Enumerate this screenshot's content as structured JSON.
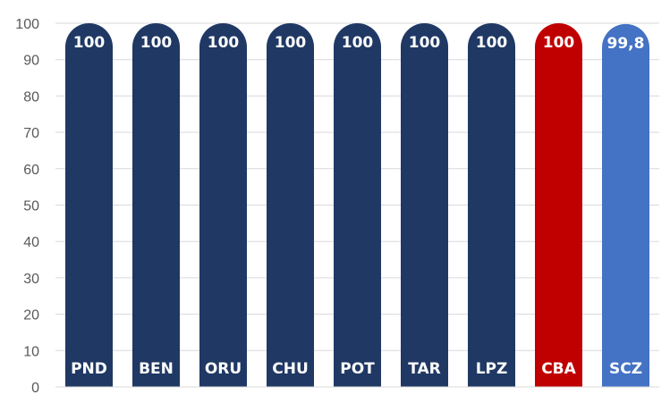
{
  "chart_data": {
    "type": "bar",
    "categories": [
      "PND",
      "BEN",
      "ORU",
      "CHU",
      "POT",
      "TAR",
      "LPZ",
      "CBA",
      "SCZ"
    ],
    "values": [
      100,
      100,
      100,
      100,
      100,
      100,
      100,
      100,
      99.8
    ],
    "value_labels": [
      "100",
      "100",
      "100",
      "100",
      "100",
      "100",
      "100",
      "100",
      "99,8"
    ],
    "bar_colors": [
      "#203864",
      "#203864",
      "#203864",
      "#203864",
      "#203864",
      "#203864",
      "#203864",
      "#c00000",
      "#4472c4"
    ],
    "yticks": [
      "0",
      "10",
      "20",
      "30",
      "40",
      "50",
      "60",
      "70",
      "80",
      "90",
      "100"
    ],
    "ylim": [
      0,
      100
    ],
    "grid": true,
    "title": "",
    "xlabel": "",
    "ylabel": ""
  }
}
